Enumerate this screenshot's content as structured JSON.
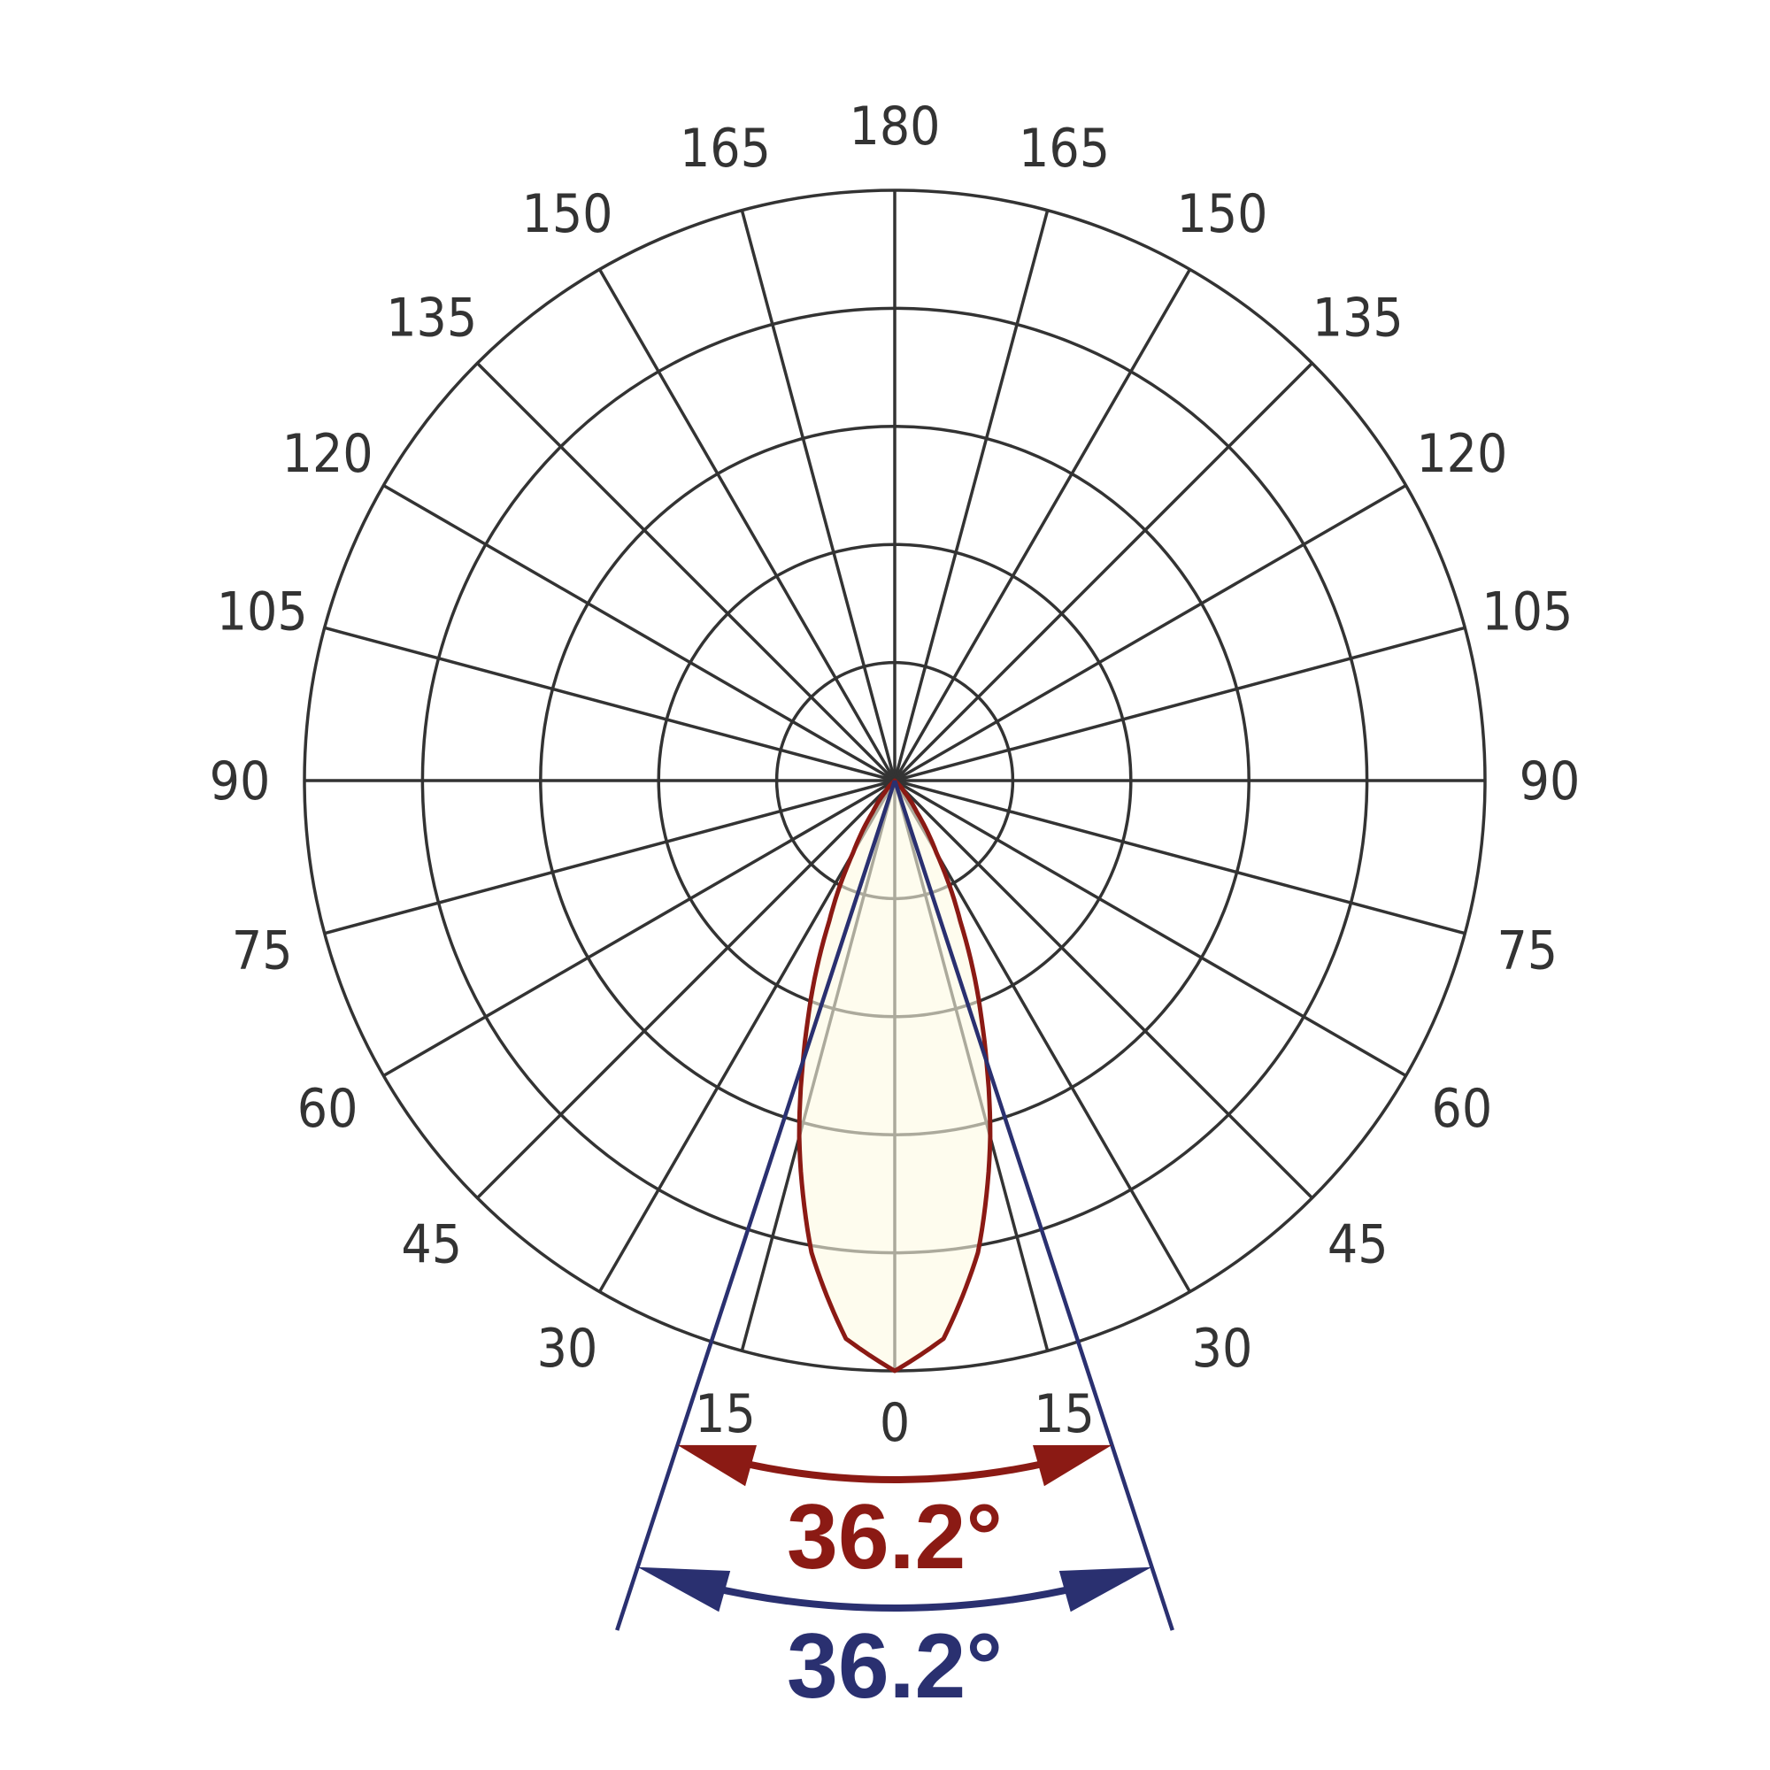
{
  "chart_data": {
    "type": "polar",
    "angle_ticks": [
      "0",
      "15",
      "30",
      "45",
      "60",
      "75",
      "90",
      "105",
      "120",
      "135",
      "150",
      "165",
      "180"
    ],
    "angle_step_deg": 15,
    "ring_count": 5,
    "grid": true,
    "series": [
      {
        "angles_deg": [
          0,
          5,
          10,
          15,
          18.1,
          20,
          25,
          30,
          35,
          40,
          45
        ],
        "relative_intensity": [
          1.0,
          0.949,
          0.812,
          0.625,
          0.5,
          0.43,
          0.262,
          0.141,
          0.066,
          0.026,
          0.009
        ],
        "color": "#8b1a14",
        "fill": "#fdfae3"
      }
    ],
    "beam_angles": [
      {
        "label": "36.2°",
        "value_deg": 36.2,
        "color": "#8b1a14"
      },
      {
        "label": "36.2°",
        "value_deg": 36.2,
        "color": "#2a3070"
      }
    ]
  }
}
